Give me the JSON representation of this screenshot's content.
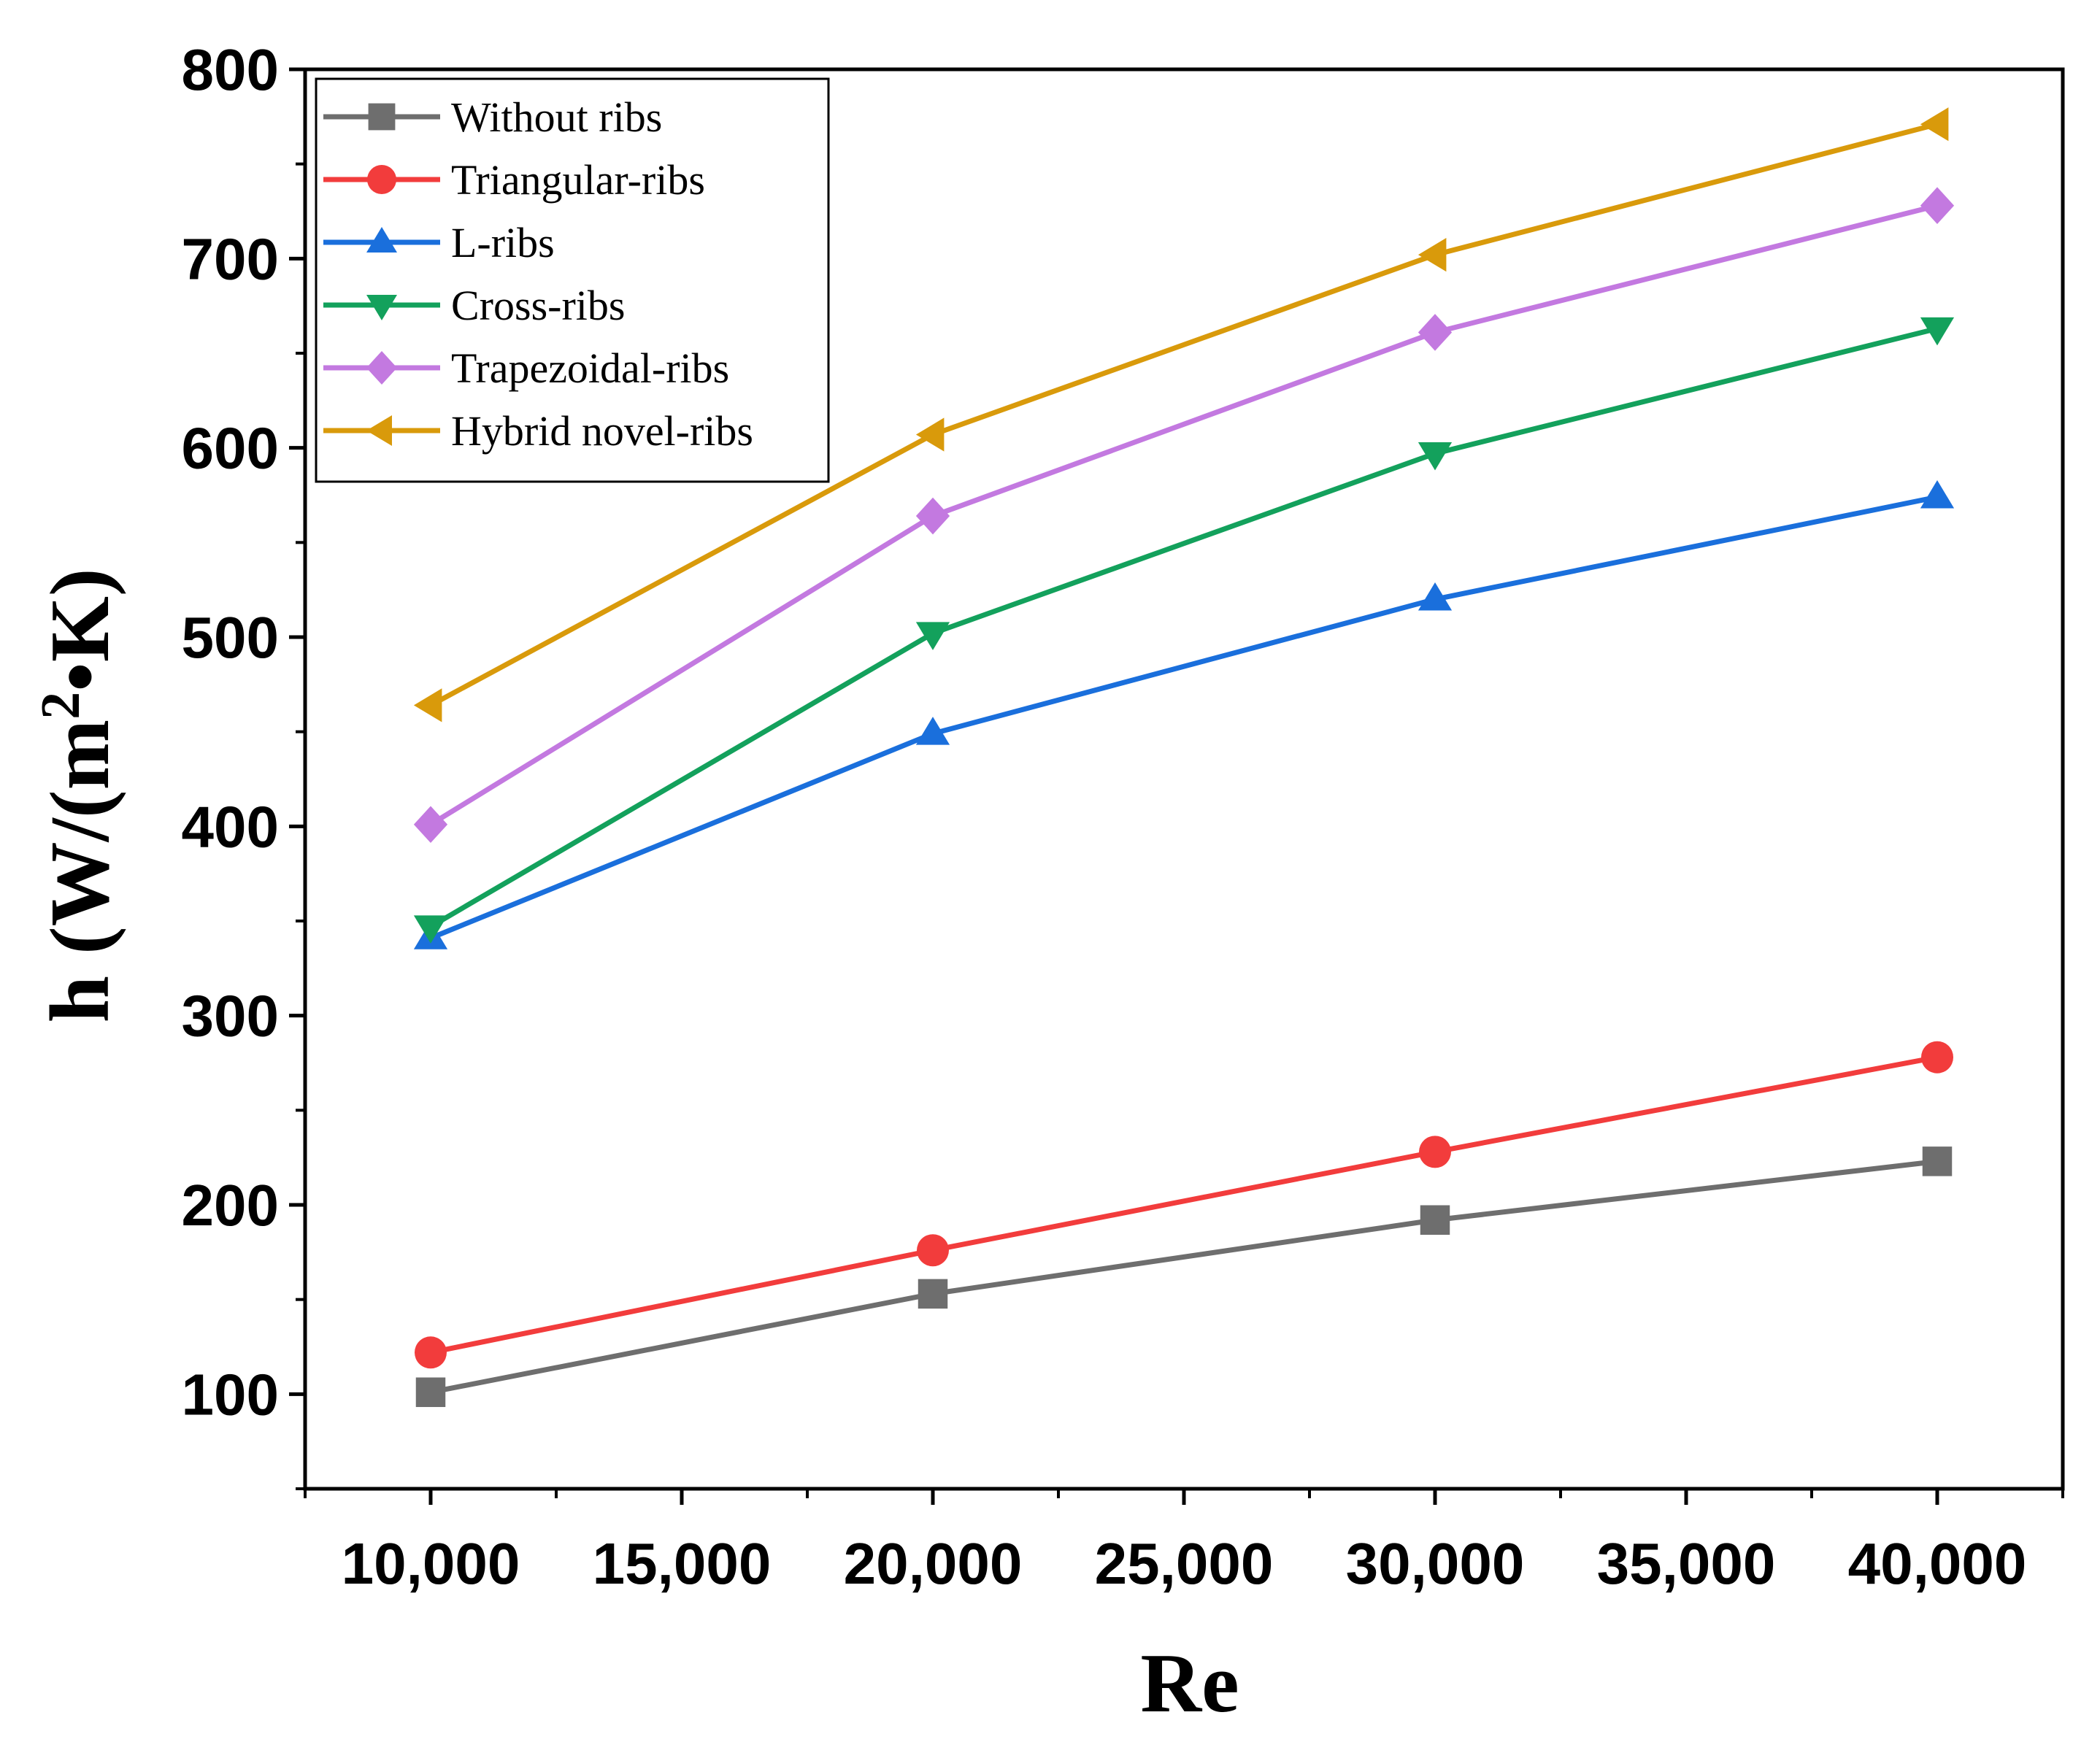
{
  "chart_data": {
    "type": "line",
    "title": "",
    "xlabel": "Re",
    "ylabel": "h (W/(m²•K)",
    "ylabel_parts": {
      "main": "h  (W/(m",
      "sup": "2",
      "tail": "•K)"
    },
    "x": [
      10000,
      20000,
      30000,
      40000
    ],
    "xlim": [
      7500,
      42500
    ],
    "ylim": [
      50,
      800
    ],
    "xticks": [
      10000,
      15000,
      20000,
      25000,
      30000,
      35000,
      40000
    ],
    "xtick_labels": [
      "10,000",
      "15,000",
      "20,000",
      "25,000",
      "30,000",
      "35,000",
      "40,000"
    ],
    "yticks": [
      100,
      200,
      300,
      400,
      500,
      600,
      700,
      800
    ],
    "ytick_labels": [
      "100",
      "200",
      "300",
      "400",
      "500",
      "600",
      "700",
      "800"
    ],
    "grid": false,
    "legend_position": "top-left",
    "series": [
      {
        "name": "Without ribs",
        "color": "#6e6e6e",
        "marker": "square",
        "values": [
          101,
          153,
          192,
          223
        ]
      },
      {
        "name": "Triangular-ribs",
        "color": "#f23c3c",
        "marker": "circle",
        "values": [
          122,
          176,
          228,
          278
        ]
      },
      {
        "name": "L-ribs",
        "color": "#1a6fdc",
        "marker": "triangle-up",
        "values": [
          341,
          449,
          520,
          574
        ]
      },
      {
        "name": "Cross-ribs",
        "color": "#13a15c",
        "marker": "triangle-down",
        "values": [
          347,
          502,
          597,
          663
        ]
      },
      {
        "name": "Trapezoidal-ribs",
        "color": "#c379e0",
        "marker": "diamond",
        "values": [
          401,
          564,
          661,
          728
        ]
      },
      {
        "name": "Hybrid novel-ribs",
        "color": "#d99a0b",
        "marker": "triangle-left",
        "values": [
          464,
          607,
          702,
          771
        ]
      }
    ]
  }
}
